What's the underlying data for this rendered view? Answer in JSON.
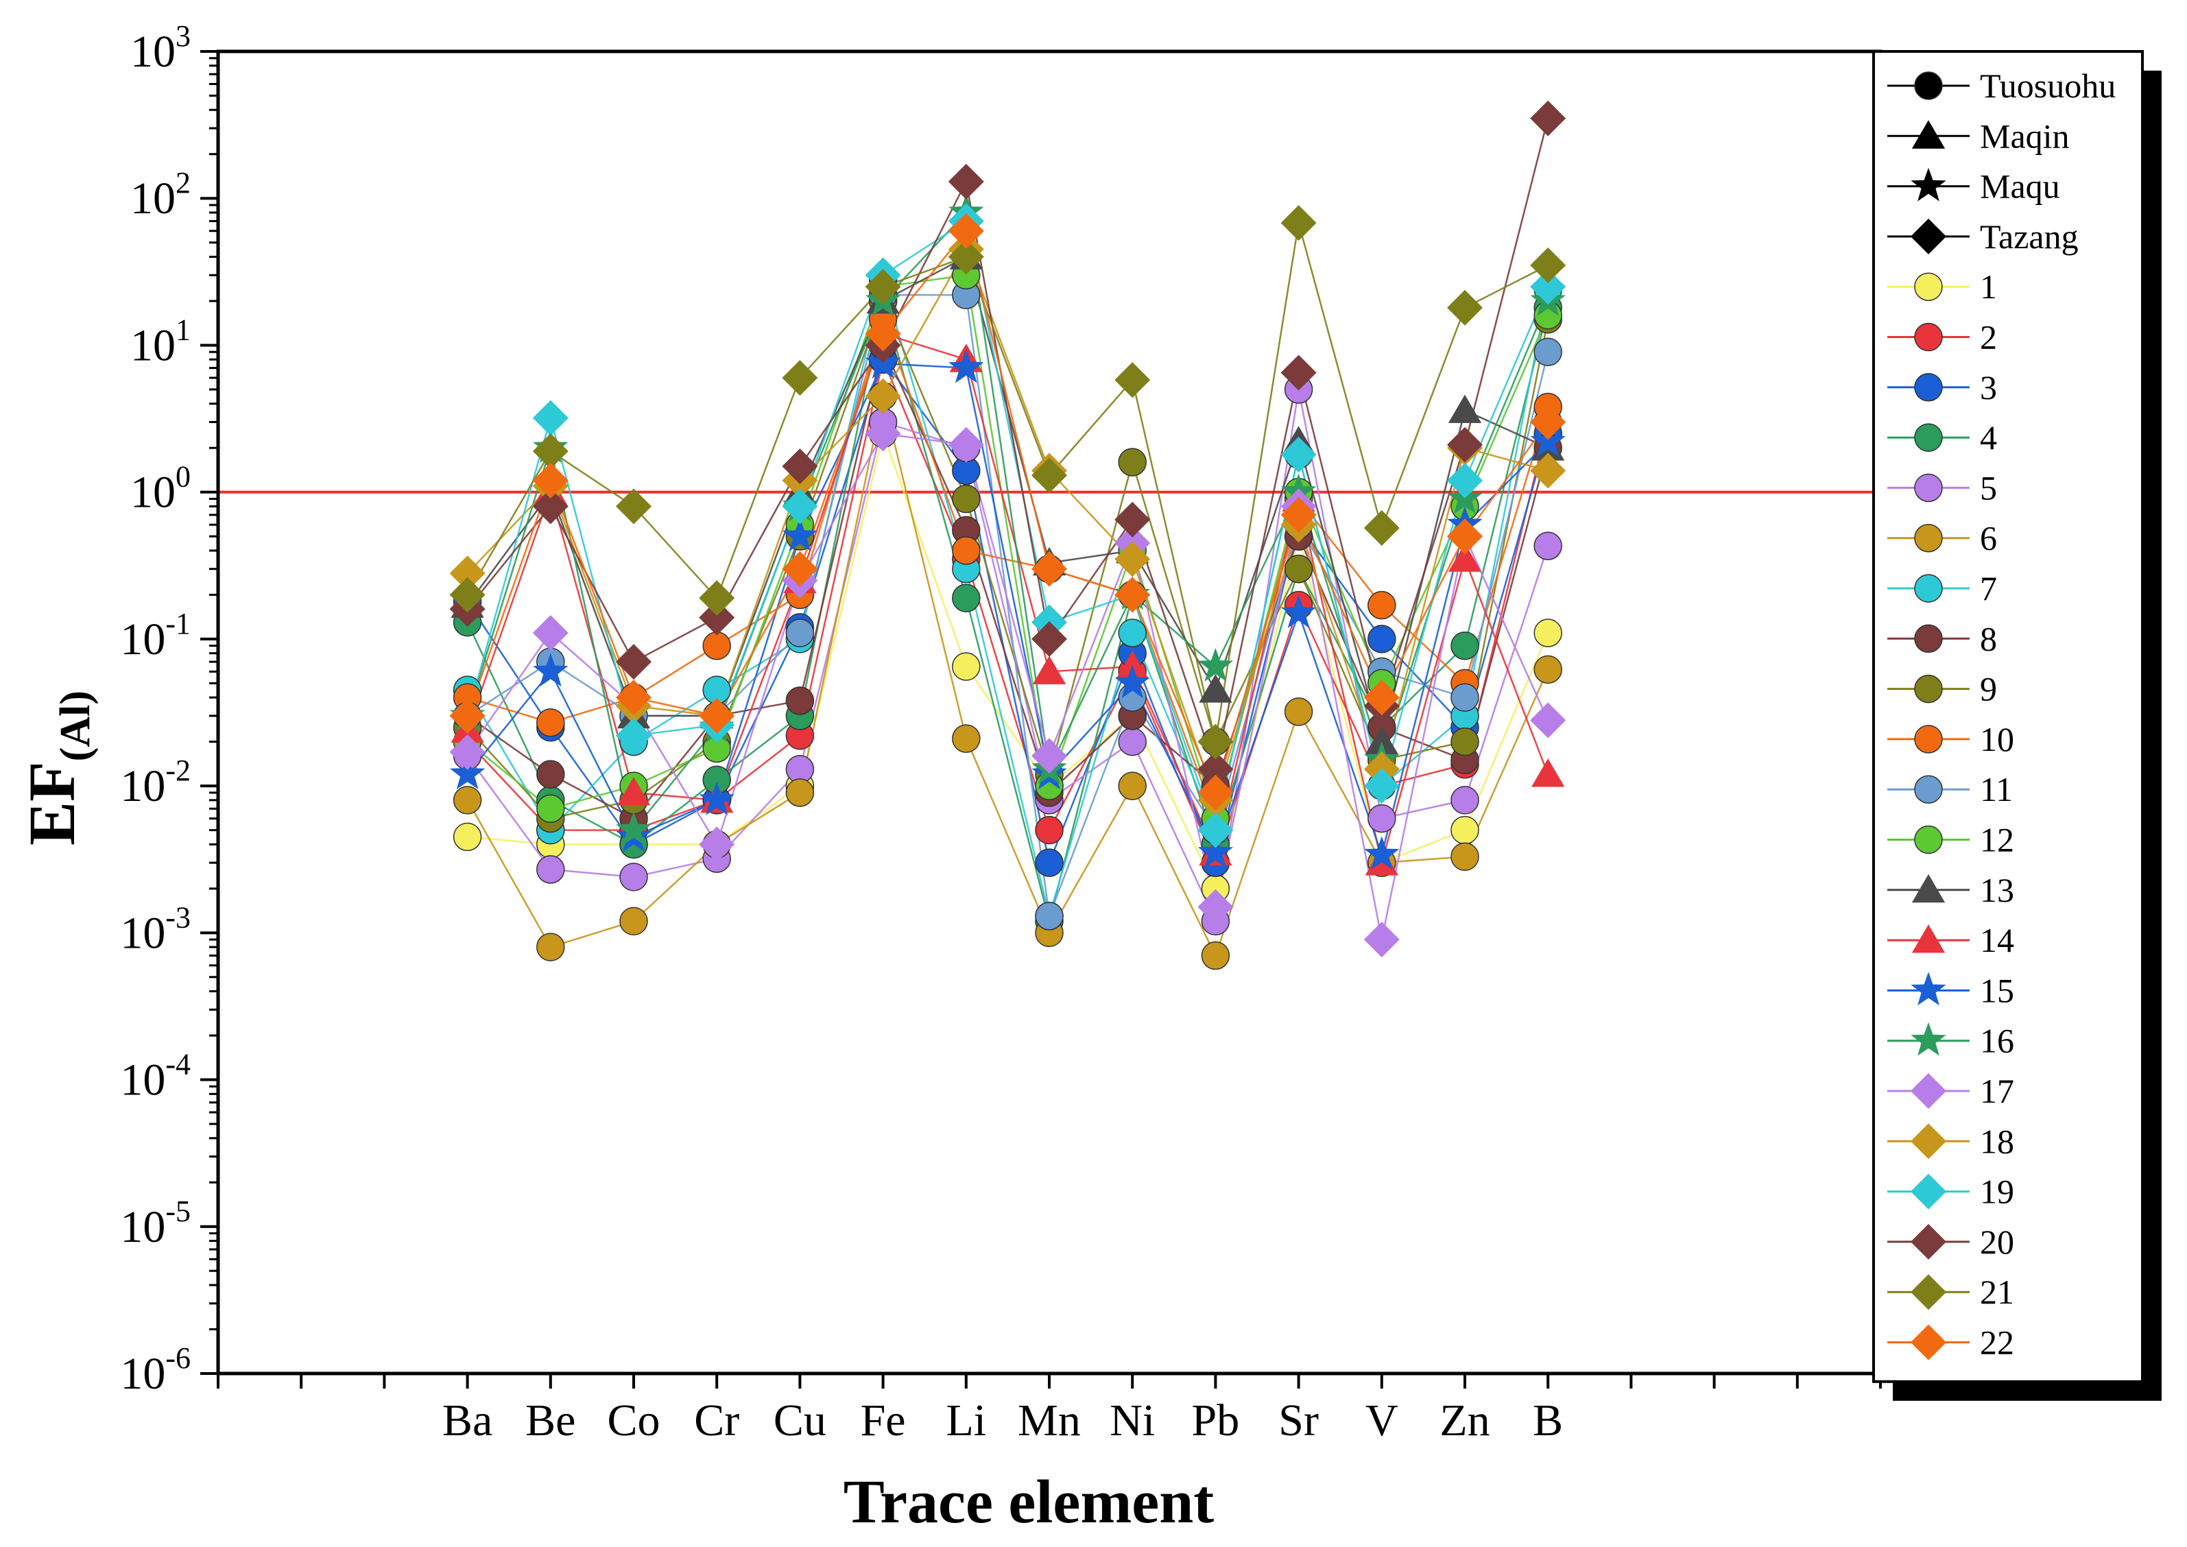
{
  "chart_data": {
    "type": "line",
    "xlabel": "Trace element",
    "ylabel": "EF",
    "ylabel_sub": "(Al)",
    "y_scale": "log",
    "ylim_exp": [
      -6,
      3
    ],
    "y_tick_base": "10",
    "y_tick_exponents": [
      "-6",
      "-5",
      "-4",
      "-3",
      "-2",
      "-1",
      "0",
      "1",
      "2",
      "3"
    ],
    "reference_line": {
      "value": 1,
      "color": "#e8302e"
    },
    "categories": [
      "Ba",
      "Be",
      "Co",
      "Cr",
      "Cu",
      "Fe",
      "Li",
      "Mn",
      "Ni",
      "Pb",
      "Sr",
      "V",
      "Zn",
      "B"
    ],
    "legend_position": "right",
    "legend_marker_types": [
      {
        "name": "Tuosuohu",
        "marker": "circle"
      },
      {
        "name": "Maqin",
        "marker": "triangle"
      },
      {
        "name": "Maqu",
        "marker": "star"
      },
      {
        "name": "Tazang",
        "marker": "diamond"
      }
    ],
    "series": [
      {
        "name": "1",
        "marker": "circle",
        "color": "#f5ef5e",
        "values": [
          0.0045,
          0.004,
          0.004,
          0.004,
          0.01,
          2.5,
          0.065,
          0.01,
          0.03,
          0.002,
          0.5,
          0.003,
          0.005,
          0.11
        ]
      },
      {
        "name": "2",
        "marker": "circle",
        "color": "#e8343a",
        "values": [
          0.02,
          0.005,
          0.005,
          0.008,
          0.022,
          8,
          0.35,
          0.005,
          0.06,
          0.003,
          0.17,
          0.01,
          0.014,
          3
        ]
      },
      {
        "name": "3",
        "marker": "circle",
        "color": "#1a5fd6",
        "values": [
          0.18,
          0.025,
          0.004,
          0.008,
          0.12,
          8,
          1.4,
          0.003,
          0.08,
          0.003,
          0.6,
          0.1,
          0.025,
          2.5
        ]
      },
      {
        "name": "4",
        "marker": "circle",
        "color": "#2b9c5c",
        "values": [
          0.13,
          0.008,
          0.004,
          0.011,
          0.03,
          20,
          0.19,
          0.0012,
          0.2,
          0.004,
          0.3,
          0.025,
          0.09,
          18
        ]
      },
      {
        "name": "5",
        "marker": "circle",
        "color": "#b77de8",
        "values": [
          0.016,
          0.0027,
          0.0024,
          0.0032,
          0.013,
          3,
          2,
          0.008,
          0.02,
          0.0012,
          5,
          0.006,
          0.008,
          0.43
        ]
      },
      {
        "name": "6",
        "marker": "circle",
        "color": "#c8961a",
        "values": [
          0.008,
          0.0008,
          0.0012,
          0.004,
          0.009,
          4.5,
          0.021,
          0.001,
          0.01,
          0.0007,
          0.032,
          0.003,
          0.0033,
          0.062
        ]
      },
      {
        "name": "7",
        "marker": "circle",
        "color": "#2ec9d6",
        "values": [
          0.045,
          0.005,
          0.02,
          0.045,
          0.1,
          28,
          0.3,
          0.0013,
          0.11,
          0.005,
          1.8,
          0.01,
          0.03,
          24
        ]
      },
      {
        "name": "8",
        "marker": "circle",
        "color": "#7b3b3b",
        "values": [
          0.03,
          0.012,
          0.006,
          0.03,
          0.038,
          10,
          0.55,
          0.009,
          0.03,
          0.01,
          0.5,
          0.025,
          0.015,
          2
        ]
      },
      {
        "name": "9",
        "marker": "circle",
        "color": "#7f7f1a",
        "values": [
          0.025,
          0.006,
          0.008,
          0.02,
          0.5,
          20,
          0.9,
          0.012,
          1.6,
          0.02,
          0.3,
          0.015,
          0.02,
          15
        ]
      },
      {
        "name": "10",
        "marker": "circle",
        "color": "#f26a10",
        "values": [
          0.04,
          0.027,
          0.04,
          0.09,
          0.2,
          15,
          0.4,
          0.3,
          0.2,
          0.006,
          0.9,
          0.17,
          0.05,
          3.8
        ]
      },
      {
        "name": "11",
        "marker": "circle",
        "color": "#6a9cd0",
        "values": [
          0.03,
          0.07,
          0.03,
          0.03,
          0.11,
          22,
          22,
          0.0013,
          0.04,
          0.005,
          0.6,
          0.06,
          0.04,
          9
        ]
      },
      {
        "name": "12",
        "marker": "circle",
        "color": "#5cc832",
        "values": [
          0.02,
          0.007,
          0.01,
          0.018,
          0.6,
          25,
          30,
          0.01,
          0.4,
          0.006,
          1,
          0.05,
          0.8,
          16
        ]
      },
      {
        "name": "13",
        "marker": "triangle",
        "color": "#4a4a4a",
        "values": [
          0.17,
          1,
          0.03,
          0.03,
          1,
          20,
          40,
          0.33,
          0.4,
          0.045,
          2.2,
          0.02,
          3.6,
          2
        ]
      },
      {
        "name": "14",
        "marker": "triangle",
        "color": "#e8343a",
        "values": [
          0.024,
          1,
          0.009,
          0.008,
          0.25,
          12,
          8,
          0.06,
          0.065,
          0.0035,
          0.9,
          0.003,
          0.35,
          0.012
        ]
      },
      {
        "name": "15",
        "marker": "star",
        "color": "#1a5fd6",
        "values": [
          0.012,
          0.06,
          0.0045,
          0.008,
          0.5,
          7.5,
          7,
          0.012,
          0.05,
          0.0035,
          0.15,
          0.0034,
          0.6,
          2.2
        ]
      },
      {
        "name": "16",
        "marker": "star",
        "color": "#2b9c5c",
        "values": [
          0.03,
          2,
          0.005,
          0.025,
          0.8,
          20,
          80,
          0.013,
          0.2,
          0.065,
          1,
          0.015,
          0.9,
          20
        ]
      },
      {
        "name": "17",
        "marker": "diamond",
        "color": "#b77de8",
        "values": [
          0.017,
          0.11,
          0.035,
          0.004,
          0.25,
          2.5,
          2.1,
          0.016,
          0.45,
          0.0015,
          0.8,
          0.0009,
          0.5,
          0.028
        ]
      },
      {
        "name": "18",
        "marker": "diamond",
        "color": "#c8961a",
        "values": [
          0.28,
          1.1,
          0.035,
          0.03,
          1.2,
          4.5,
          45,
          1.4,
          0.35,
          0.008,
          0.6,
          0.013,
          2,
          1.4
        ]
      },
      {
        "name": "19",
        "marker": "diamond",
        "color": "#2ec9d6",
        "values": [
          0.03,
          3.2,
          0.022,
          0.026,
          0.8,
          30,
          70,
          0.13,
          0.2,
          0.005,
          1.8,
          0.01,
          1.2,
          25
        ]
      },
      {
        "name": "20",
        "marker": "diamond",
        "color": "#7b3b3b",
        "values": [
          0.16,
          0.8,
          0.07,
          0.14,
          1.5,
          10,
          130,
          0.1,
          0.65,
          0.013,
          6.5,
          0.035,
          2.1,
          350
        ]
      },
      {
        "name": "21",
        "marker": "diamond",
        "color": "#7f7f1a",
        "values": [
          0.2,
          1.9,
          0.8,
          0.19,
          6,
          25,
          40,
          1.3,
          5.8,
          0.02,
          68,
          0.57,
          18,
          35
        ]
      },
      {
        "name": "22",
        "marker": "diamond",
        "color": "#f26a10",
        "values": [
          0.03,
          1.2,
          0.04,
          0.03,
          0.3,
          12,
          60,
          0.3,
          0.2,
          0.009,
          0.7,
          0.04,
          0.5,
          3
        ]
      }
    ]
  }
}
